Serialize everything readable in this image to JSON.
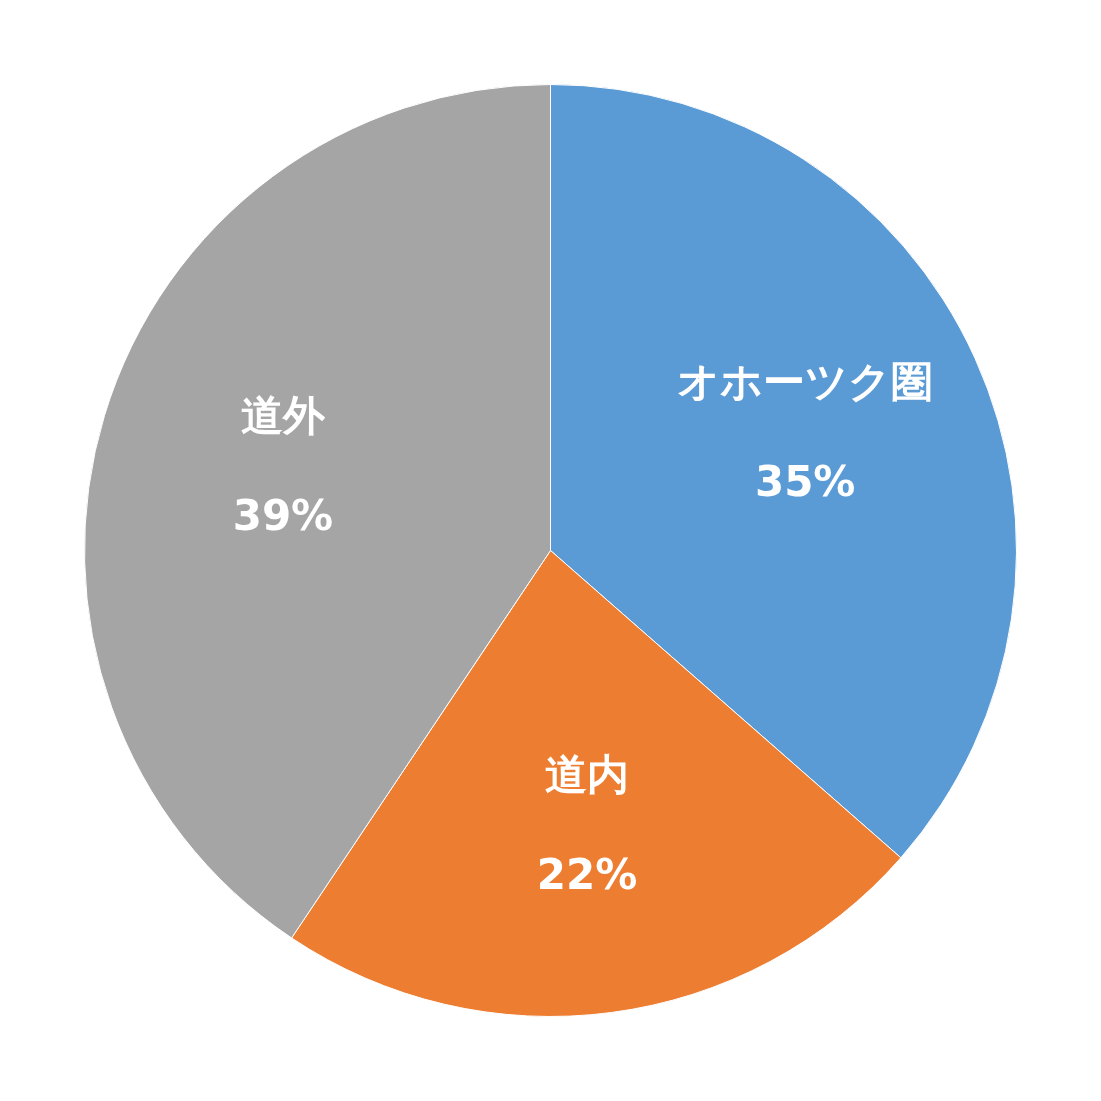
{
  "chart_data": {
    "type": "pie",
    "categories": [
      "オホーツク圏",
      "道内",
      "道外"
    ],
    "values": [
      35,
      22,
      39
    ],
    "colors": [
      "#5b9bd5",
      "#ed7d31",
      "#a5a5a5"
    ],
    "value_labels": [
      "35%",
      "22%",
      "39%"
    ],
    "legend": false
  }
}
